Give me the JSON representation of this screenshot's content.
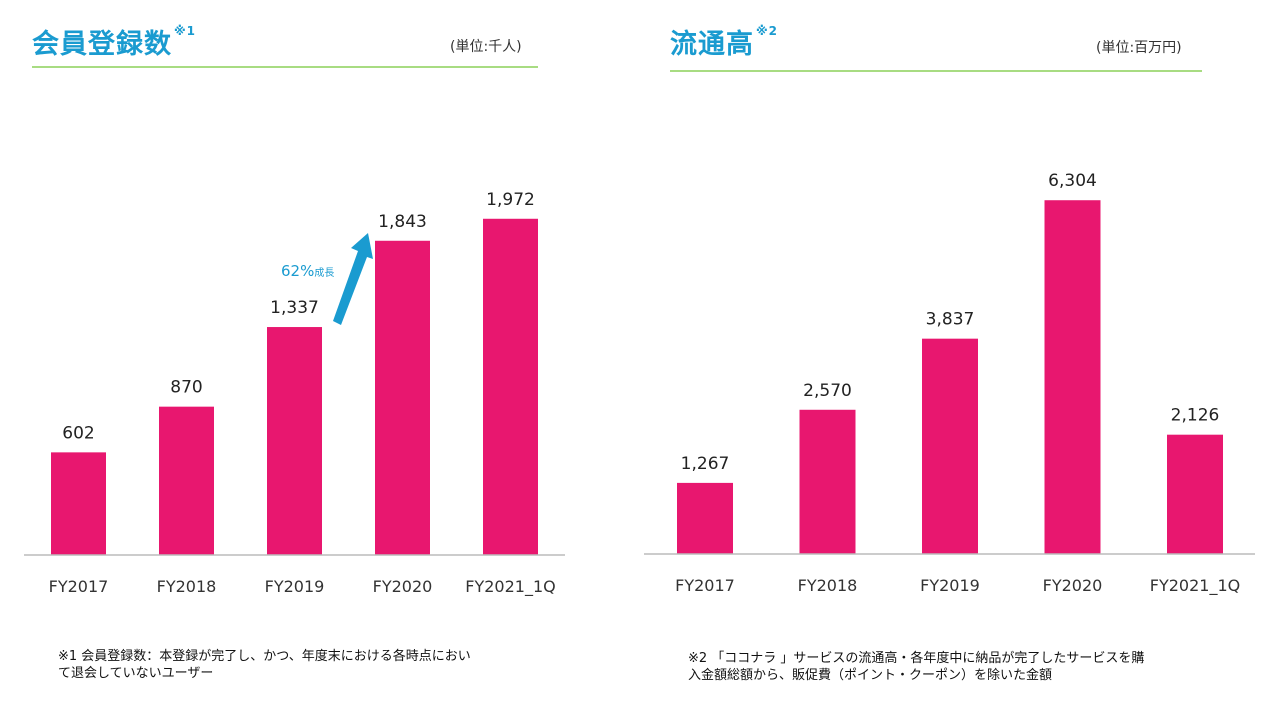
{
  "left": {
    "title": "会員登録数",
    "title_sup": "※1",
    "unit": "(単位:千人)",
    "growth_label": "62%",
    "growth_suffix": "成長",
    "note_line1": "※1 会員登録数：本登録が完了し、かつ、年度末における各時点におい",
    "note_line2": "て退会していないユーザー"
  },
  "right": {
    "title": "流通高",
    "title_sup": "※2",
    "unit": "(単位:百万円)",
    "note_line1": "※2 「ココナラ 」サービスの流通高・各年度中に納品が完了したサービスを購",
    "note_line2": "入金額総額から、販促費（ポイント・クーポン）を除いた金額"
  },
  "colors": {
    "bar": "#e8176f",
    "title": "#1a9bd0",
    "arrow": "#1a9bd0",
    "rule": "#a8dc82",
    "axis": "#bbbbbb"
  },
  "chart_data": [
    {
      "type": "bar",
      "title": "会員登録数",
      "unit": "千人",
      "categories": [
        "FY2017",
        "FY2018",
        "FY2019",
        "FY2020",
        "FY2021_1Q"
      ],
      "values": [
        602,
        870,
        1337,
        1843,
        1972
      ],
      "value_labels": [
        "602",
        "870",
        "1,337",
        "1,843",
        "1,972"
      ],
      "ylim": [
        0,
        2000
      ],
      "annotation": "62%成長"
    },
    {
      "type": "bar",
      "title": "流通高",
      "unit": "百万円",
      "categories": [
        "FY2017",
        "FY2018",
        "FY2019",
        "FY2020",
        "FY2021_1Q"
      ],
      "values": [
        1267,
        2570,
        3837,
        6304,
        2126
      ],
      "value_labels": [
        "1,267",
        "2,570",
        "3,837",
        "6,304",
        "2,126"
      ],
      "ylim": [
        0,
        6700
      ]
    }
  ]
}
